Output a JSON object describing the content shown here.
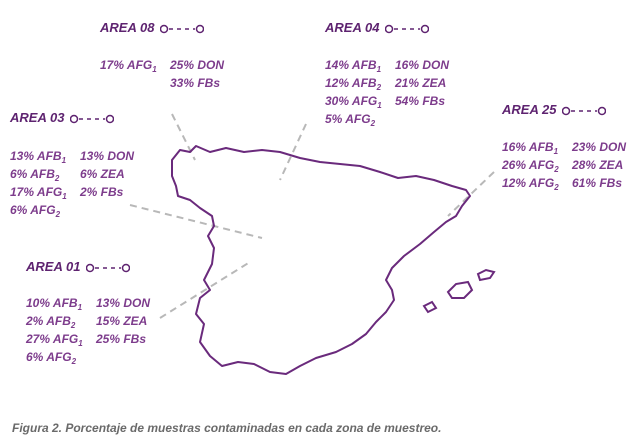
{
  "areas": {
    "a08": {
      "title": "AREA 08",
      "col1": [
        "17% AFG1"
      ],
      "col2": [
        "25% DON",
        "33% FBs"
      ]
    },
    "a04": {
      "title": "AREA 04",
      "col1": [
        "14% AFB1",
        "12% AFB2",
        "30% AFG1",
        "5% AFG2"
      ],
      "col2": [
        "16% DON",
        "21% ZEA",
        "54% FBs"
      ]
    },
    "a03": {
      "title": "AREA 03",
      "col1": [
        "13% AFB1",
        "6% AFB2",
        "17% AFG1",
        "6% AFG2"
      ],
      "col2": [
        "13% DON",
        "6% ZEA",
        "2% FBs"
      ]
    },
    "a25": {
      "title": "AREA 25",
      "col1": [
        "16% AFB1",
        "26% AFG2",
        "12% AFG2"
      ],
      "col2": [
        "23% DON",
        "28% ZEA",
        "61% FBs"
      ]
    },
    "a01": {
      "title": "AREA 01",
      "col1": [
        "10% AFB1",
        "2% AFB2",
        "27% AFG1",
        "6% AFG2"
      ],
      "col2": [
        "13% DON",
        "15% ZEA",
        "25% FBs"
      ]
    }
  },
  "caption": "Figura 2. Porcentaje de muestras contaminadas en cada zona de muestreo.",
  "colors": {
    "accent": "#7d3c8c",
    "title": "#5e2370",
    "leader": "#b8b8b8",
    "map": "#6a2a7c"
  }
}
